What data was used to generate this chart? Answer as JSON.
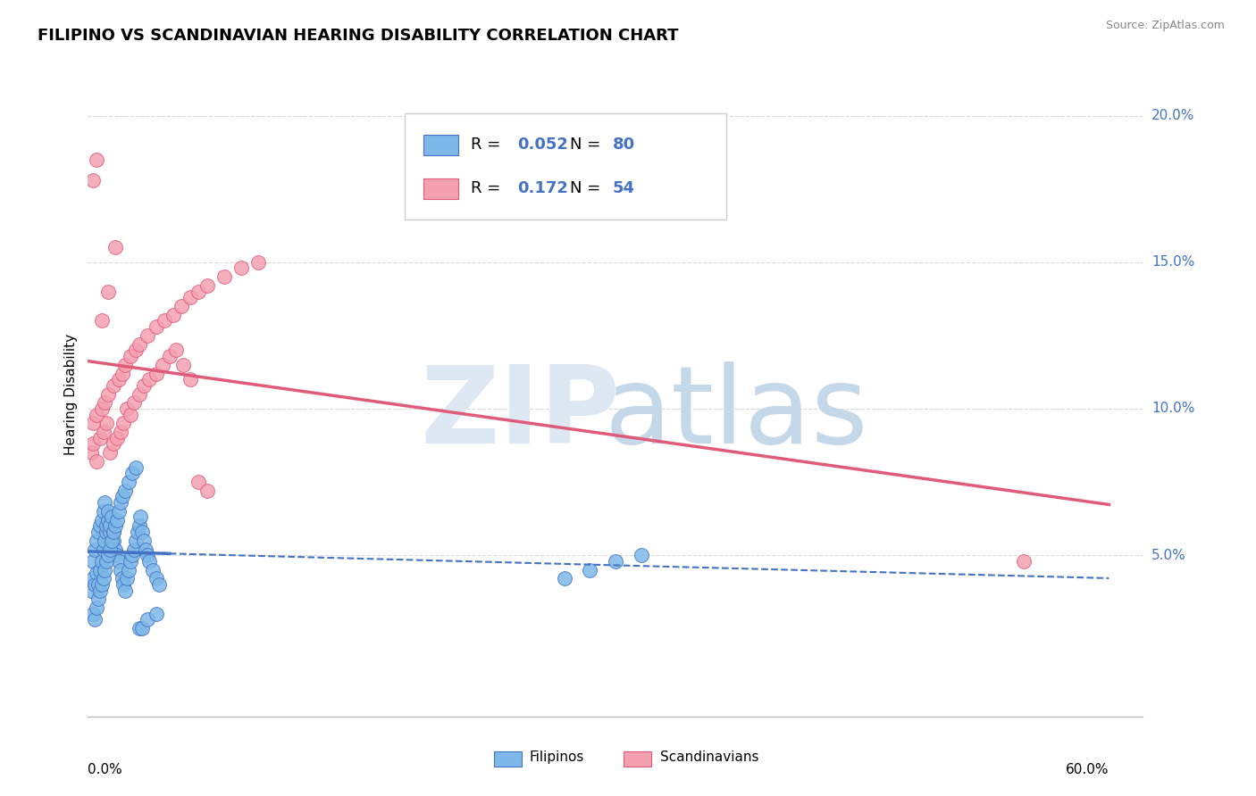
{
  "title": "FILIPINO VS SCANDINAVIAN HEARING DISABILITY CORRELATION CHART",
  "source": "Source: ZipAtlas.com",
  "ylabel": "Hearing Disability",
  "xlim": [
    0.0,
    0.62
  ],
  "ylim": [
    -0.005,
    0.215
  ],
  "yticks": [
    0.05,
    0.1,
    0.15,
    0.2
  ],
  "ytick_labels": [
    "5.0%",
    "10.0%",
    "15.0%",
    "20.0%"
  ],
  "xtick_left": "0.0%",
  "xtick_right": "60.0%",
  "filipino_color": "#7db8e8",
  "filipino_edge_color": "#4472c4",
  "scandinavian_color": "#f4a0b0",
  "scandinavian_edge_color": "#e05a7a",
  "filipino_R": "0.052",
  "filipino_N": "80",
  "scandinavian_R": "0.172",
  "scandinavian_N": "54",
  "trend_blue": "#4472c4",
  "trend_pink": "#e05a7a",
  "label_blue": "#4472c4",
  "grid_color": "#d8d8d8",
  "watermark_zip_color": "#dde8f2",
  "watermark_atlas_color": "#c5d8ea",
  "background": "#ffffff",
  "filipino_scatter_x": [
    0.002,
    0.003,
    0.003,
    0.004,
    0.004,
    0.005,
    0.005,
    0.006,
    0.006,
    0.007,
    0.007,
    0.008,
    0.008,
    0.009,
    0.009,
    0.01,
    0.01,
    0.011,
    0.011,
    0.012,
    0.012,
    0.013,
    0.013,
    0.014,
    0.015,
    0.015,
    0.016,
    0.017,
    0.018,
    0.019,
    0.02,
    0.021,
    0.022,
    0.023,
    0.024,
    0.025,
    0.026,
    0.027,
    0.028,
    0.029,
    0.03,
    0.031,
    0.032,
    0.033,
    0.034,
    0.035,
    0.036,
    0.038,
    0.04,
    0.042,
    0.003,
    0.004,
    0.005,
    0.006,
    0.007,
    0.008,
    0.009,
    0.01,
    0.011,
    0.012,
    0.013,
    0.014,
    0.015,
    0.016,
    0.017,
    0.018,
    0.019,
    0.02,
    0.022,
    0.024,
    0.026,
    0.028,
    0.03,
    0.032,
    0.035,
    0.04,
    0.28,
    0.295,
    0.31,
    0.325
  ],
  "filipino_scatter_y": [
    0.038,
    0.042,
    0.048,
    0.04,
    0.052,
    0.044,
    0.055,
    0.04,
    0.058,
    0.045,
    0.06,
    0.048,
    0.062,
    0.052,
    0.065,
    0.055,
    0.068,
    0.058,
    0.06,
    0.062,
    0.065,
    0.058,
    0.06,
    0.063,
    0.058,
    0.055,
    0.052,
    0.05,
    0.048,
    0.045,
    0.042,
    0.04,
    0.038,
    0.042,
    0.045,
    0.048,
    0.05,
    0.052,
    0.055,
    0.058,
    0.06,
    0.063,
    0.058,
    0.055,
    0.052,
    0.05,
    0.048,
    0.045,
    0.042,
    0.04,
    0.03,
    0.028,
    0.032,
    0.035,
    0.038,
    0.04,
    0.042,
    0.045,
    0.048,
    0.05,
    0.052,
    0.055,
    0.058,
    0.06,
    0.062,
    0.065,
    0.068,
    0.07,
    0.072,
    0.075,
    0.078,
    0.08,
    0.025,
    0.025,
    0.028,
    0.03,
    0.042,
    0.045,
    0.048,
    0.05
  ],
  "scandinavian_scatter_x": [
    0.002,
    0.003,
    0.005,
    0.007,
    0.009,
    0.011,
    0.013,
    0.015,
    0.017,
    0.019,
    0.021,
    0.023,
    0.025,
    0.027,
    0.03,
    0.033,
    0.036,
    0.04,
    0.044,
    0.048,
    0.052,
    0.056,
    0.06,
    0.065,
    0.07,
    0.003,
    0.005,
    0.008,
    0.01,
    0.012,
    0.015,
    0.018,
    0.02,
    0.022,
    0.025,
    0.028,
    0.03,
    0.035,
    0.04,
    0.045,
    0.05,
    0.055,
    0.06,
    0.065,
    0.07,
    0.08,
    0.09,
    0.1,
    0.003,
    0.005,
    0.008,
    0.012,
    0.016,
    0.55
  ],
  "scandinavian_scatter_y": [
    0.085,
    0.088,
    0.082,
    0.09,
    0.092,
    0.095,
    0.085,
    0.088,
    0.09,
    0.092,
    0.095,
    0.1,
    0.098,
    0.102,
    0.105,
    0.108,
    0.11,
    0.112,
    0.115,
    0.118,
    0.12,
    0.115,
    0.11,
    0.075,
    0.072,
    0.095,
    0.098,
    0.1,
    0.102,
    0.105,
    0.108,
    0.11,
    0.112,
    0.115,
    0.118,
    0.12,
    0.122,
    0.125,
    0.128,
    0.13,
    0.132,
    0.135,
    0.138,
    0.14,
    0.142,
    0.145,
    0.148,
    0.15,
    0.178,
    0.185,
    0.13,
    0.14,
    0.155,
    0.048
  ]
}
